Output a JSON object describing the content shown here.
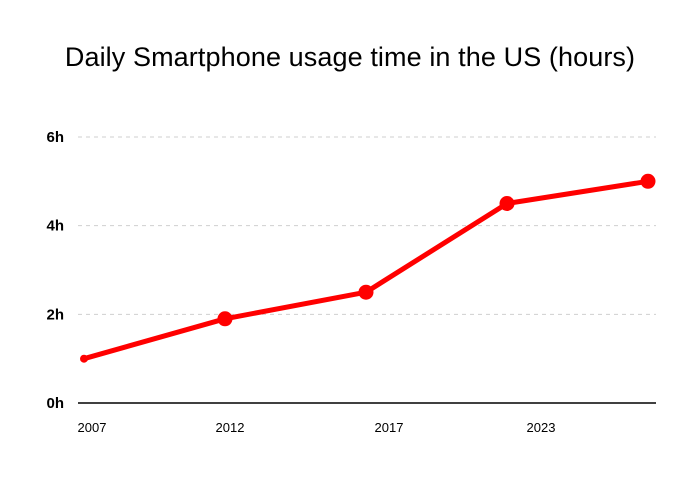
{
  "chart_data": {
    "type": "line",
    "title": "Daily Smartphone usage time in the US (hours)",
    "xlabel": "",
    "ylabel": "",
    "x_tick_labels": [
      "2007",
      "2012",
      "2017",
      "2023"
    ],
    "y_ticks": [
      0,
      2,
      4,
      6
    ],
    "y_tick_labels": [
      "0h",
      "2h",
      "4h",
      "6h"
    ],
    "xlim": [
      2007,
      2027
    ],
    "ylim": [
      0,
      6
    ],
    "grid": true,
    "legend": "none",
    "series": [
      {
        "color": "#ff0000",
        "x": [
          2007,
          2012,
          2017,
          2022,
          2027
        ],
        "y": [
          1.0,
          1.9,
          2.5,
          4.5,
          5.0
        ]
      }
    ]
  }
}
